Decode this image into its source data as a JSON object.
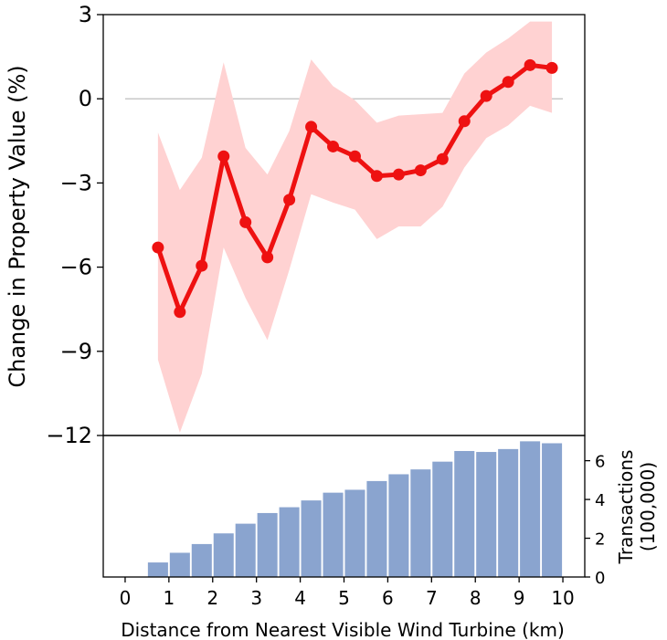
{
  "chart_data": [
    {
      "type": "line",
      "ylabel": "Change in Property Value (%)",
      "ylim": [
        -12,
        3
      ],
      "xlim": [
        -0.5,
        10.5
      ],
      "yticks": [
        3,
        0,
        -3,
        -6,
        -9,
        -12
      ],
      "ytick_labels": [
        "3",
        "0",
        "−3",
        "−6",
        "−9",
        "−12"
      ],
      "reference_line": 0,
      "colors": {
        "line": "#ee1111",
        "band": "#ffd2d2",
        "zero_line": "#c8c8c8"
      },
      "series": [
        {
          "x": [
            0.75,
            1.25,
            1.75,
            2.25,
            2.75,
            3.25,
            3.75,
            4.25,
            4.75,
            5.25,
            5.75,
            6.25,
            6.75,
            7.25,
            7.75,
            8.25,
            8.75,
            9.25,
            9.75
          ],
          "values": [
            -5.3,
            -7.6,
            -5.95,
            -2.05,
            -4.4,
            -5.65,
            -3.6,
            -1.0,
            -1.7,
            -2.05,
            -2.75,
            -2.7,
            -2.55,
            -2.15,
            -0.8,
            0.1,
            0.6,
            1.2,
            1.1
          ],
          "lower": [
            -9.3,
            -11.9,
            -9.8,
            -5.3,
            -7.1,
            -8.6,
            -6.1,
            -3.4,
            -3.7,
            -3.95,
            -5.0,
            -4.55,
            -4.55,
            -3.85,
            -2.45,
            -1.4,
            -0.95,
            -0.25,
            -0.5
          ],
          "upper": [
            -1.2,
            -3.25,
            -2.1,
            1.3,
            -1.75,
            -2.7,
            -1.15,
            1.4,
            0.45,
            -0.05,
            -0.85,
            -0.6,
            -0.55,
            -0.5,
            0.9,
            1.65,
            2.15,
            2.75,
            2.75
          ]
        }
      ]
    },
    {
      "type": "bar",
      "ylabel": "Transactions\n(100,000)",
      "ylabel_lines": [
        "Transactions",
        "(100,000)"
      ],
      "xlabel": "Distance from Nearest Visible Wind Turbine (km)",
      "xlim": [
        -0.5,
        10.5
      ],
      "ylim": [
        0,
        7.3
      ],
      "xticks": [
        0,
        1,
        2,
        3,
        4,
        5,
        6,
        7,
        8,
        9,
        10
      ],
      "xtick_labels": [
        "0",
        "1",
        "2",
        "3",
        "4",
        "5",
        "6",
        "7",
        "8",
        "9",
        "10"
      ],
      "yticks": [
        0,
        2,
        4,
        6
      ],
      "ytick_labels": [
        "0",
        "2",
        "4",
        "6"
      ],
      "colors": {
        "bar": "#8aa4cf"
      },
      "x": [
        0.75,
        1.25,
        1.75,
        2.25,
        2.75,
        3.25,
        3.75,
        4.25,
        4.75,
        5.25,
        5.75,
        6.25,
        6.75,
        7.25,
        7.75,
        8.25,
        8.75,
        9.25,
        9.75
      ],
      "values": [
        0.75,
        1.25,
        1.7,
        2.25,
        2.75,
        3.3,
        3.6,
        3.95,
        4.35,
        4.5,
        4.95,
        5.3,
        5.55,
        5.95,
        6.5,
        6.45,
        6.6,
        7.0,
        6.9
      ]
    }
  ]
}
